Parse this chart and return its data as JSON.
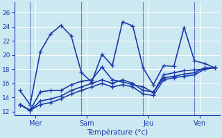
{
  "xlabel": "Température (°c)",
  "background_color": "#cce8f0",
  "line_color": "#1a3aaa",
  "ylim": [
    11.5,
    27.5
  ],
  "yticks": [
    12,
    14,
    16,
    18,
    20,
    22,
    24,
    26
  ],
  "xtick_labels": [
    "Mer",
    "Sam",
    "Jeu",
    "Ven"
  ],
  "series1_x": [
    0,
    1,
    2,
    3,
    4,
    5,
    6,
    7,
    8,
    9,
    10,
    11,
    12,
    13,
    14,
    15,
    16,
    17,
    18,
    19
  ],
  "series1_y": [
    15.0,
    13.0,
    20.5,
    23.0,
    24.2,
    22.7,
    17.5,
    16.2,
    20.1,
    18.5,
    24.7,
    24.1,
    18.2,
    15.8,
    18.5,
    18.4,
    23.9,
    19.2,
    18.8,
    18.2
  ],
  "series2_x": [
    0,
    1,
    2,
    3,
    4,
    5,
    6,
    7,
    8,
    9,
    10,
    11,
    12,
    13,
    14,
    15,
    16,
    17,
    18,
    19
  ],
  "series2_y": [
    13.0,
    12.2,
    14.8,
    15.0,
    15.0,
    15.8,
    16.3,
    16.5,
    18.3,
    16.5,
    16.2,
    15.8,
    15.5,
    14.7,
    17.2,
    17.5,
    17.8,
    17.9,
    18.0,
    18.2
  ],
  "series3_x": [
    0,
    1,
    2,
    3,
    4,
    5,
    6,
    7,
    8,
    9,
    10,
    11,
    12,
    13,
    14,
    15,
    16,
    17,
    18,
    19
  ],
  "series3_y": [
    13.0,
    12.2,
    13.5,
    13.8,
    14.2,
    15.0,
    15.5,
    16.0,
    16.5,
    16.0,
    16.5,
    16.0,
    15.0,
    14.8,
    16.8,
    17.0,
    17.3,
    17.5,
    18.2,
    18.2
  ],
  "series4_x": [
    0,
    1,
    2,
    3,
    4,
    5,
    6,
    7,
    8,
    9,
    10,
    11,
    12,
    13,
    14,
    15,
    16,
    17,
    18,
    19
  ],
  "series4_y": [
    13.0,
    12.2,
    13.0,
    13.3,
    13.8,
    14.5,
    15.0,
    15.5,
    16.0,
    15.5,
    15.8,
    15.5,
    14.5,
    14.3,
    16.5,
    16.8,
    17.0,
    17.2,
    18.0,
    18.2
  ],
  "xtick_xvals": [
    1.5,
    6.5,
    12.5,
    17.5
  ],
  "vline_xvals": [
    1.0,
    6.0,
    12.0,
    17.0
  ],
  "xlim": [
    -0.5,
    19.5
  ],
  "linewidth": 1.2,
  "markersize": 4
}
